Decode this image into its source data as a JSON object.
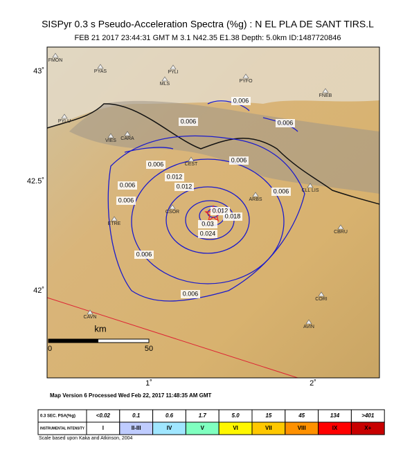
{
  "header": {
    "title": "SISPyr 0.3 s Pseudo-Acceleration Spectra (%g) : N EL PLA DE SANT TIRS.L",
    "subtitle": "FEB 21 2017 23:44:31  GMT   M 3.1   N42.35 E1.38   Depth: 5.0km   ID:1487720846"
  },
  "map": {
    "lat_labels": [
      "43˚",
      "42.5˚",
      "42˚"
    ],
    "lon_labels": [
      "1˚",
      "2˚"
    ],
    "stations": [
      "FMON",
      "PYAS",
      "PYLI",
      "MLS",
      "PYFO",
      "FNEB",
      "PYLU",
      "CARA",
      "VIES",
      "CEST",
      "ARBS",
      "CLL LIS",
      "CSOR",
      "ETRE",
      "CBRU",
      "CORI",
      "CAVN",
      "AVIN"
    ],
    "contour_labels": [
      "0.006",
      "0.006",
      "0.006",
      "0.006",
      "0.006",
      "0.006",
      "0.006",
      "0.006",
      "0.006",
      "0.012",
      "0.012",
      "0.012",
      "0.018",
      "0.024",
      "0.03",
      "0.006"
    ],
    "scale_bar": {
      "unit": "km",
      "start": "0",
      "end": "50"
    }
  },
  "footer": "Map Version 6 Processed Wed Feb 22, 2017 11:48:35 AM GMT",
  "legend": {
    "psa_title": "0.3 SEC. PSA(%g)",
    "psa": [
      "<0.02",
      "0.1",
      "0.6",
      "1.7",
      "5.0",
      "15",
      "45",
      "134",
      ">401"
    ],
    "intensity_title": "INSTRUMENTAL INTENSITY",
    "intensity": [
      "I",
      "II-III",
      "IV",
      "V",
      "VI",
      "VII",
      "VIII",
      "IX",
      "X+"
    ],
    "note": "Scale based upon Kaka and Atkinson, 2004"
  }
}
